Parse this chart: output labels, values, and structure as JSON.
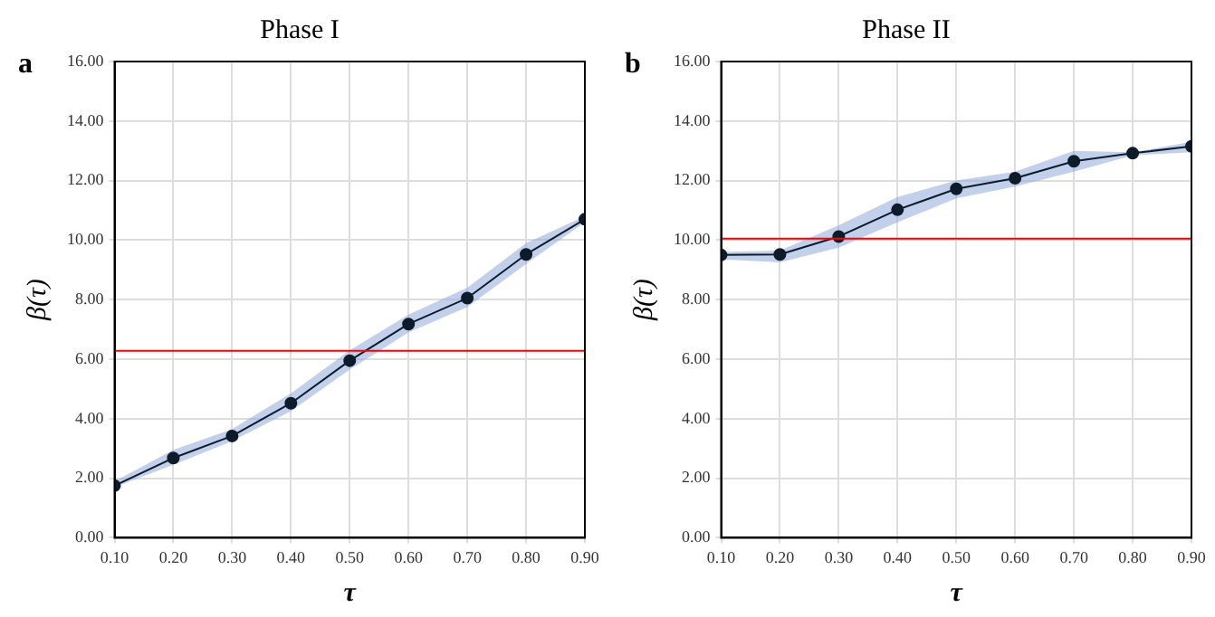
{
  "chart_data": [
    {
      "type": "line",
      "title": "Phase I",
      "annotations": [
        "a"
      ],
      "xlabel": "τ",
      "ylabel": "β(τ)",
      "x": [
        0.1,
        0.2,
        0.3,
        0.4,
        0.5,
        0.6,
        0.7,
        0.8,
        0.9
      ],
      "series": [
        {
          "color": "#0d1b2a",
          "values": [
            1.75,
            2.68,
            3.42,
            4.52,
            5.95,
            7.18,
            8.05,
            9.52,
            10.7
          ],
          "lower": [
            1.7,
            2.45,
            3.25,
            4.25,
            5.65,
            6.9,
            7.75,
            9.2,
            10.6
          ],
          "upper": [
            1.9,
            2.95,
            3.65,
            4.85,
            6.3,
            7.5,
            8.4,
            9.9,
            10.8
          ]
        }
      ],
      "ref_lines": [
        {
          "axis": "y",
          "value": 6.28,
          "color": "#ff0000"
        }
      ],
      "xlim": [
        0.1,
        0.9
      ],
      "xticks": [
        {
          "value": 0.1,
          "label": "0.10"
        },
        {
          "value": 0.2,
          "label": "0.20"
        },
        {
          "value": 0.3,
          "label": "0.30"
        },
        {
          "value": 0.4,
          "label": "0.40"
        },
        {
          "value": 0.5,
          "label": "0.50"
        },
        {
          "value": 0.6,
          "label": "0.60"
        },
        {
          "value": 0.7,
          "label": "0.70"
        },
        {
          "value": 0.8,
          "label": "0.80"
        },
        {
          "value": 0.9,
          "label": "0.90"
        }
      ],
      "ylim": [
        0,
        16
      ],
      "yticks": [
        {
          "value": 0,
          "label": "0.00"
        },
        {
          "value": 2,
          "label": "2.00"
        },
        {
          "value": 4,
          "label": "4.00"
        },
        {
          "value": 6,
          "label": "6.00"
        },
        {
          "value": 8,
          "label": "8.00"
        },
        {
          "value": 10,
          "label": "10.00"
        },
        {
          "value": 12,
          "label": "12.00"
        },
        {
          "value": 14,
          "label": "14.00"
        },
        {
          "value": 16,
          "label": "16.00"
        }
      ],
      "grid": true,
      "marker": "circle",
      "line_style": "solid"
    },
    {
      "type": "line",
      "title": "Phase II",
      "annotations": [
        "b"
      ],
      "xlabel": "τ",
      "ylabel": "β(τ)",
      "x": [
        0.1,
        0.2,
        0.3,
        0.4,
        0.5,
        0.6,
        0.7,
        0.8,
        0.9
      ],
      "series": [
        {
          "color": "#0d1b2a",
          "values": [
            9.5,
            9.52,
            10.12,
            11.02,
            11.72,
            12.08,
            12.65,
            12.92,
            13.15
          ],
          "lower": [
            9.35,
            9.25,
            9.75,
            10.6,
            11.4,
            11.8,
            12.3,
            12.85,
            12.95
          ],
          "upper": [
            9.6,
            9.65,
            10.5,
            11.45,
            12.0,
            12.3,
            13.0,
            12.95,
            13.3
          ]
        }
      ],
      "ref_lines": [
        {
          "axis": "y",
          "value": 10.05,
          "color": "#ff0000"
        }
      ],
      "xlim": [
        0.1,
        0.9
      ],
      "xticks": [
        {
          "value": 0.1,
          "label": "0.10"
        },
        {
          "value": 0.2,
          "label": "0.20"
        },
        {
          "value": 0.3,
          "label": "0.30"
        },
        {
          "value": 0.4,
          "label": "0.40"
        },
        {
          "value": 0.5,
          "label": "0.50"
        },
        {
          "value": 0.6,
          "label": "0.60"
        },
        {
          "value": 0.7,
          "label": "0.70"
        },
        {
          "value": 0.8,
          "label": "0.80"
        },
        {
          "value": 0.9,
          "label": "0.90"
        }
      ],
      "ylim": [
        0,
        16
      ],
      "yticks": [
        {
          "value": 0,
          "label": "0.00"
        },
        {
          "value": 2,
          "label": "2.00"
        },
        {
          "value": 4,
          "label": "4.00"
        },
        {
          "value": 6,
          "label": "6.00"
        },
        {
          "value": 8,
          "label": "8.00"
        },
        {
          "value": 10,
          "label": "10.00"
        },
        {
          "value": 12,
          "label": "12.00"
        },
        {
          "value": 14,
          "label": "14.00"
        },
        {
          "value": 16,
          "label": "16.00"
        }
      ],
      "grid": true,
      "marker": "circle",
      "line_style": "solid"
    }
  ]
}
